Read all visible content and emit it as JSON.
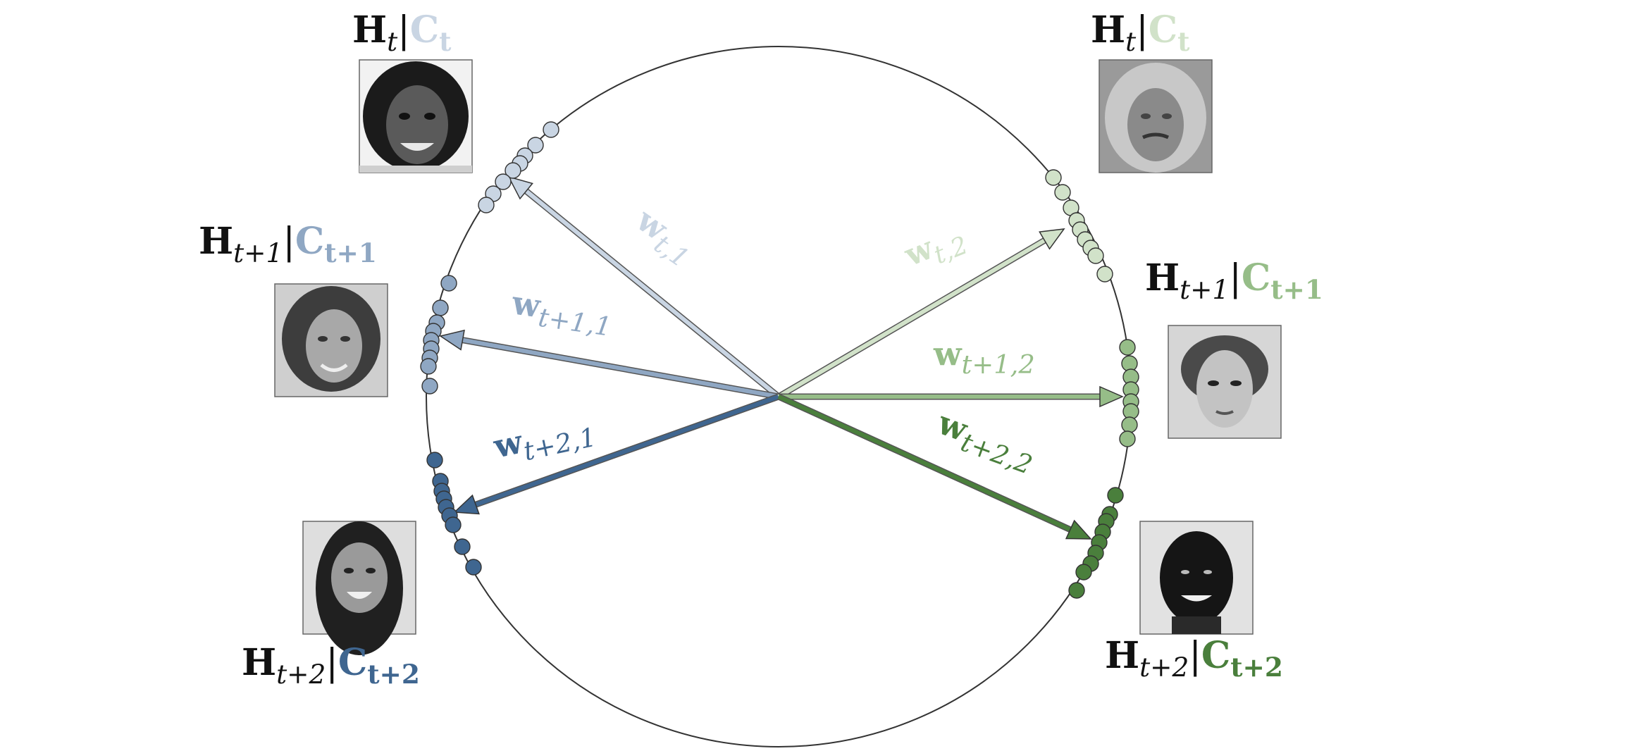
{
  "colors": {
    "w1_t": "#C9D5E3",
    "w1_t1": "#8FA7C3",
    "w1_t2": "#3F6690",
    "w2_t": "#D1E2C9",
    "w2_t1": "#96BD88",
    "w2_t2": "#4A7F3C",
    "circle": "#333333",
    "text": "#111111"
  },
  "vectors": [
    {
      "id": "w-t-1",
      "main": "w",
      "sub": "t,1",
      "color_key": "w1_t"
    },
    {
      "id": "w-t1-1",
      "main": "w",
      "sub": "t+1,1",
      "color_key": "w1_t1"
    },
    {
      "id": "w-t2-1",
      "main": "w",
      "sub": "t+2,1",
      "color_key": "w1_t2"
    },
    {
      "id": "w-t-2",
      "main": "w",
      "sub": "t,2",
      "color_key": "w2_t"
    },
    {
      "id": "w-t1-2",
      "main": "w",
      "sub": "t+1,2",
      "color_key": "w2_t1"
    },
    {
      "id": "w-t2-2",
      "main": "w",
      "sub": "t+2,2",
      "color_key": "w2_t2"
    }
  ],
  "labels": [
    {
      "id": "left-t",
      "h": "H",
      "hsub": "t",
      "c": "C",
      "csub": "t",
      "color_key": "w1_t"
    },
    {
      "id": "left-t1",
      "h": "H",
      "hsub": "t+1",
      "c": "C",
      "csub": "t+1",
      "color_key": "w1_t1"
    },
    {
      "id": "left-t2",
      "h": "H",
      "hsub": "t+2",
      "c": "C",
      "csub": "t+2",
      "color_key": "w1_t2"
    },
    {
      "id": "right-t",
      "h": "H",
      "hsub": "t",
      "c": "C",
      "csub": "t",
      "color_key": "w2_t"
    },
    {
      "id": "right-t1",
      "h": "H",
      "hsub": "t+1",
      "c": "C",
      "csub": "t+1",
      "color_key": "w2_t1"
    },
    {
      "id": "right-t2",
      "h": "H",
      "hsub": "t+2",
      "c": "C",
      "csub": "t+2",
      "color_key": "w2_t2"
    }
  ],
  "separator": "|"
}
